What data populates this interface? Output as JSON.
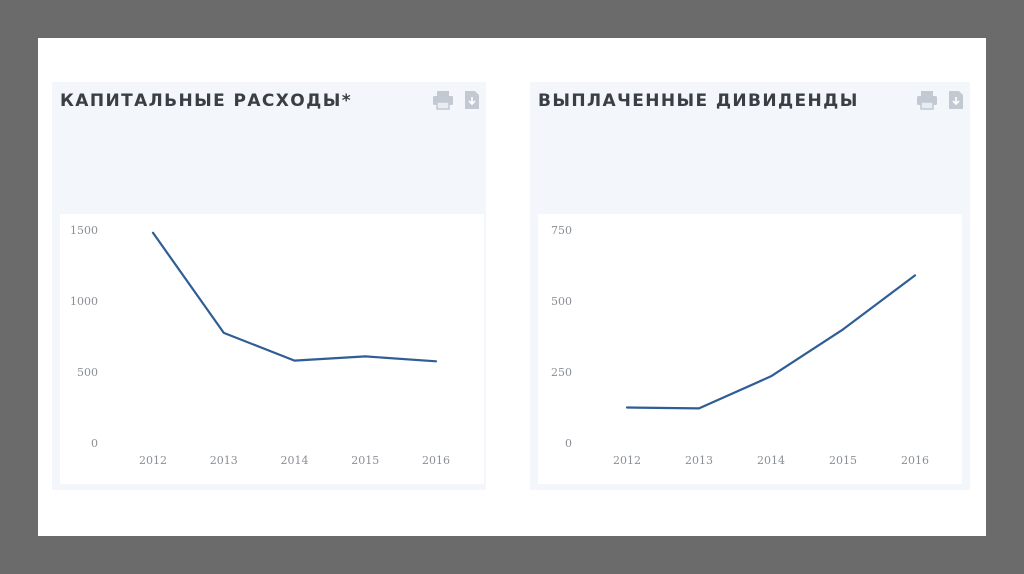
{
  "panels": [
    {
      "title": "КАПИТАЛЬНЫЕ РАСХОДЫ*",
      "icons": [
        "print-icon",
        "download-icon"
      ]
    },
    {
      "title": "ВЫПЛАЧЕННЫЕ ДИВИДЕНДЫ",
      "icons": [
        "print-icon",
        "download-icon"
      ]
    }
  ],
  "colors": {
    "line": "#2f5d95",
    "panel_bg": "#f3f6fa",
    "tick": "#8a8f96"
  },
  "chart_data": [
    {
      "type": "line",
      "title": "КАПИТАЛЬНЫЕ РАСХОДЫ*",
      "x": [
        "2012",
        "2013",
        "2014",
        "2015",
        "2016"
      ],
      "series": [
        {
          "values": [
            1480,
            775,
            580,
            610,
            575
          ]
        }
      ],
      "yticks": [
        "0",
        "500",
        "1000",
        "1500"
      ],
      "ylim": [
        0,
        1500
      ],
      "grid": false,
      "legend": "none"
    },
    {
      "type": "line",
      "title": "ВЫПЛАЧЕННЫЕ ДИВИДЕНДЫ",
      "x": [
        "2012",
        "2013",
        "2014",
        "2015",
        "2016"
      ],
      "series": [
        {
          "values": [
            125,
            122,
            235,
            400,
            590
          ]
        }
      ],
      "yticks": [
        "0",
        "250",
        "500",
        "750"
      ],
      "ylim": [
        0,
        750
      ],
      "grid": false,
      "legend": "none"
    }
  ]
}
